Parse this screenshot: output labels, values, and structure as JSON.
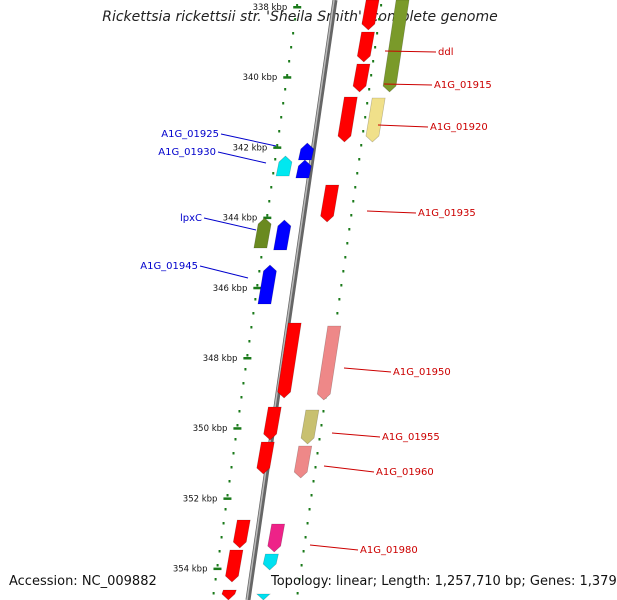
{
  "title": "Rickettsia rickettsii str. 'Sheila Smith', complete genome",
  "footer": {
    "accession": "Accession: NC_009882",
    "summary": "Topology: linear; Length: 1,257,710 bp; Genes: 1,379"
  },
  "axis": {
    "kbp_labels": [
      "338 kbp",
      "340 kbp",
      "342 kbp",
      "344 kbp",
      "346 kbp",
      "348 kbp",
      "350 kbp",
      "352 kbp",
      "354 kbp"
    ]
  },
  "genes": {
    "right": [
      {
        "name": "ddl",
        "color": "#cc0000"
      },
      {
        "name": "A1G_01915",
        "color": "#cc0000"
      },
      {
        "name": "A1G_01920",
        "color": "#cc0000"
      },
      {
        "name": "A1G_01935",
        "color": "#cc0000"
      },
      {
        "name": "A1G_01950",
        "color": "#cc0000"
      },
      {
        "name": "A1G_01955",
        "color": "#cc0000"
      },
      {
        "name": "A1G_01960",
        "color": "#cc0000"
      },
      {
        "name": "A1G_01980",
        "color": "#cc0000"
      }
    ],
    "left": [
      {
        "name": "A1G_01925",
        "color": "#0000cc"
      },
      {
        "name": "A1G_01930",
        "color": "#0000cc"
      },
      {
        "name": "lpxC",
        "color": "#0000cc"
      },
      {
        "name": "A1G_01945",
        "color": "#0000cc"
      }
    ]
  },
  "colors": {
    "forward_cds": "#ff0000",
    "reverse_cds": "#0000ff",
    "backbone": "#888888",
    "ticks": "#1a7a1a"
  }
}
